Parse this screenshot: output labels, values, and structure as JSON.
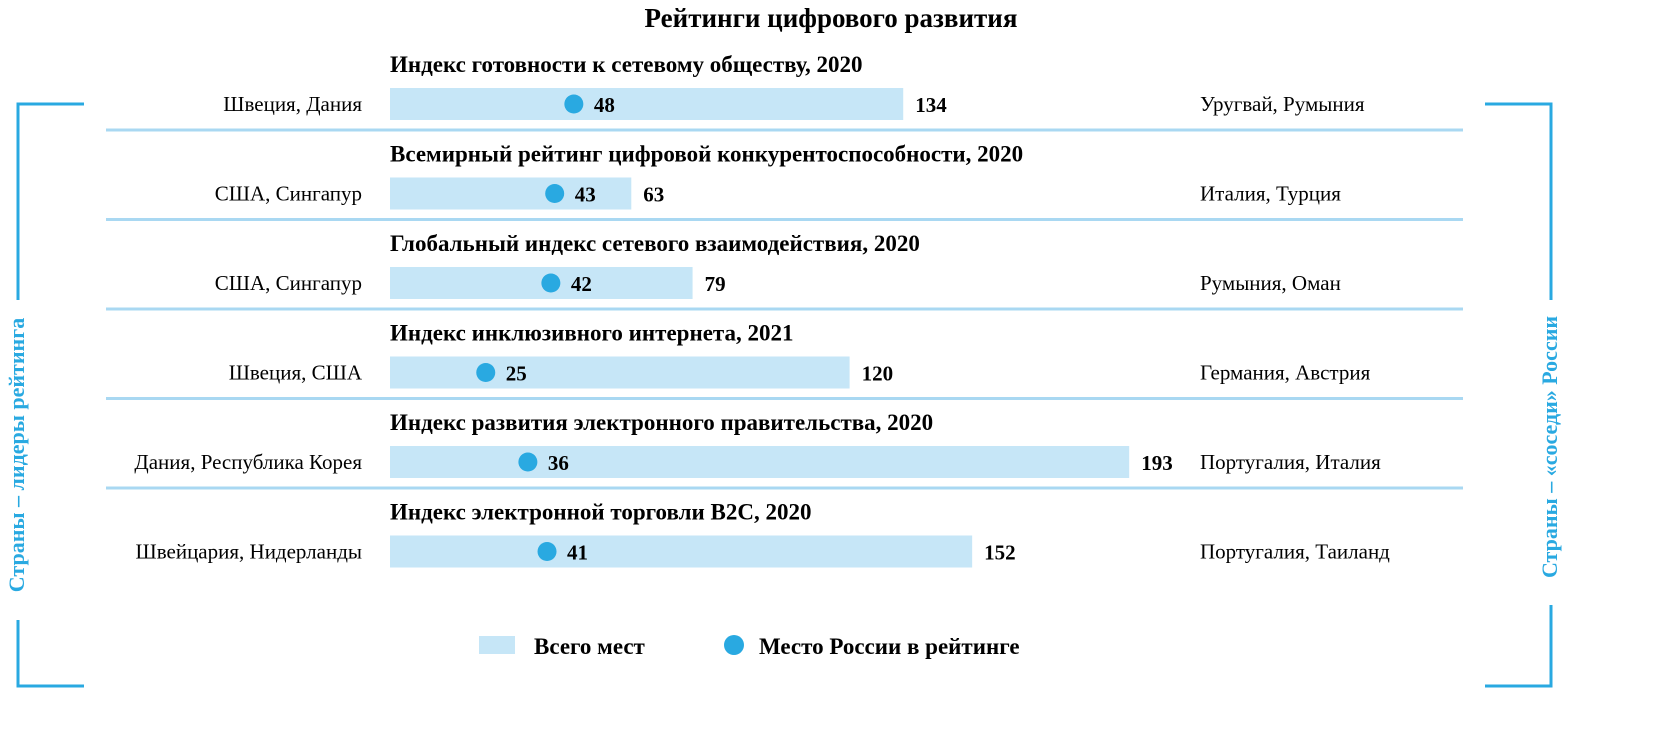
{
  "chart_data": {
    "type": "bar",
    "title": "Рейтинги цифрового развития",
    "left_side_label": "Страны – лидеры рейтинга",
    "right_side_label": "Страны – «соседи» России",
    "legend": {
      "bar_label": "Всего мест",
      "dot_label": "Место России в рейтинге"
    },
    "colors": {
      "bar": "#c6e6f7",
      "dot": "#29a9e1",
      "accent": "#29a9e1",
      "divider": "#a9d8f2"
    },
    "xlim": [
      0,
      200
    ],
    "rows": [
      {
        "index": "Индекс готовности к сетевому обществу, 2020",
        "leaders": "Швеция, Дания",
        "total": 134,
        "russia": 48,
        "neighbors": "Уругвай, Румыния"
      },
      {
        "index": "Всемирный рейтинг цифровой конкурентоспособности, 2020",
        "leaders": "США, Сингапур",
        "total": 63,
        "russia": 43,
        "neighbors": "Италия, Турция"
      },
      {
        "index": "Глобальный индекс сетевого взаимодействия, 2020",
        "leaders": "США, Сингапур",
        "total": 79,
        "russia": 42,
        "neighbors": "Румыния, Оман"
      },
      {
        "index": "Индекс инклюзивного интернета, 2021",
        "leaders": "Швеция, США",
        "total": 120,
        "russia": 25,
        "neighbors": "Германия, Австрия"
      },
      {
        "index": "Индекс развития электронного правительства, 2020",
        "leaders": "Дания, Республика Корея",
        "total": 193,
        "russia": 36,
        "neighbors": "Португалия, Италия"
      },
      {
        "index": "Индекс электронной торговли B2C, 2020",
        "leaders": "Швейцария, Нидерланды",
        "total": 152,
        "russia": 41,
        "neighbors": "Португалия, Таиланд"
      }
    ]
  }
}
